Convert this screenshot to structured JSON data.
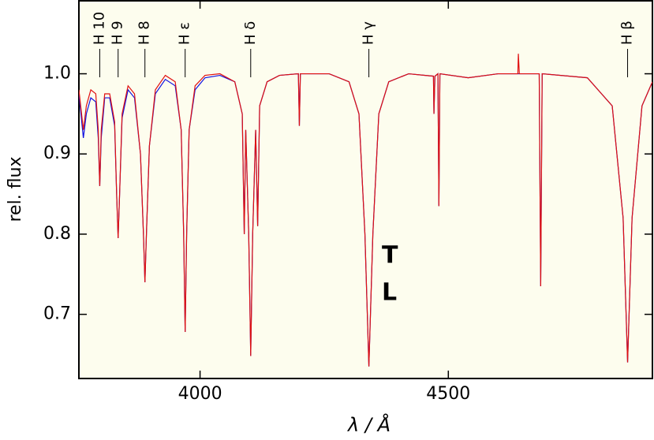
{
  "chart_data": {
    "type": "line",
    "xlabel": "λ / Å",
    "ylabel": "rel. flux",
    "xlim": [
      3756,
      4911
    ],
    "ylim": [
      0.62,
      1.091
    ],
    "xticks": [
      4000,
      4500
    ],
    "yticks": [
      {
        "value": 1,
        "label": "1.0"
      },
      0.9,
      0.8,
      0.7
    ],
    "line_labels": [
      {
        "x": 3798,
        "label": "H 10"
      },
      {
        "x": 3835,
        "label": "H 9"
      },
      {
        "x": 3889,
        "label": "H 8"
      },
      {
        "x": 3970,
        "label": "H ε"
      },
      {
        "x": 4102,
        "label": "H δ"
      },
      {
        "x": 4340,
        "label": "H γ"
      },
      {
        "x": 4861,
        "label": "H β"
      }
    ],
    "x": [
      3756,
      3765,
      3771,
      3780,
      3790,
      3795,
      3798,
      3801,
      3808,
      3818,
      3828,
      3832,
      3835,
      3838,
      3843,
      3855,
      3868,
      3880,
      3886,
      3889,
      3892,
      3898,
      3910,
      3930,
      3950,
      3962,
      3967,
      3970,
      3973,
      3978,
      3990,
      4010,
      4040,
      4070,
      4085,
      4089,
      4092,
      4098,
      4102,
      4106,
      4112,
      4116,
      4120,
      4135,
      4160,
      4198,
      4200,
      4202,
      4260,
      4300,
      4320,
      4332,
      4340,
      4348,
      4360,
      4380,
      4420,
      4470,
      4471,
      4473,
      4479,
      4481,
      4483,
      4540,
      4600,
      4640,
      4641,
      4643,
      4683,
      4686,
      4689,
      4780,
      4830,
      4852,
      4861,
      4870,
      4890,
      4911
    ],
    "series": [
      {
        "name": "L",
        "color": "#1010e0",
        "values": [
          0.975,
          0.92,
          0.95,
          0.97,
          0.965,
          0.92,
          0.86,
          0.92,
          0.97,
          0.97,
          0.935,
          0.85,
          0.795,
          0.85,
          0.945,
          0.98,
          0.97,
          0.9,
          0.8,
          0.74,
          0.8,
          0.91,
          0.975,
          0.993,
          0.985,
          0.93,
          0.8,
          0.678,
          0.8,
          0.93,
          0.98,
          0.995,
          0.998,
          0.99,
          0.95,
          0.8,
          0.93,
          0.8,
          0.648,
          0.8,
          0.93,
          0.81,
          0.96,
          0.99,
          0.998,
          1.0,
          0.935,
          1.0,
          1.0,
          0.99,
          0.95,
          0.8,
          0.635,
          0.8,
          0.95,
          0.99,
          1.0,
          0.997,
          0.95,
          0.997,
          1.0,
          0.835,
          1.0,
          0.995,
          1.0,
          1.0,
          1.0,
          1.0,
          1.0,
          0.735,
          1.0,
          0.995,
          0.96,
          0.82,
          0.64,
          0.82,
          0.96,
          0.99
        ]
      },
      {
        "name": "T",
        "color": "#e01010",
        "values": [
          0.98,
          0.93,
          0.96,
          0.98,
          0.975,
          0.93,
          0.86,
          0.93,
          0.975,
          0.975,
          0.94,
          0.85,
          0.795,
          0.85,
          0.95,
          0.985,
          0.975,
          0.9,
          0.8,
          0.74,
          0.8,
          0.91,
          0.98,
          0.998,
          0.99,
          0.93,
          0.8,
          0.678,
          0.8,
          0.93,
          0.985,
          0.998,
          1.0,
          0.99,
          0.95,
          0.8,
          0.93,
          0.8,
          0.648,
          0.8,
          0.93,
          0.81,
          0.96,
          0.99,
          0.998,
          1.0,
          0.935,
          1.0,
          1.0,
          0.99,
          0.95,
          0.8,
          0.635,
          0.8,
          0.95,
          0.99,
          1.0,
          0.997,
          0.95,
          0.997,
          1.0,
          0.835,
          1.0,
          0.995,
          1.0,
          1.0,
          1.025,
          1.0,
          1.0,
          0.735,
          1.0,
          0.995,
          0.96,
          0.82,
          0.64,
          0.82,
          0.96,
          0.99
        ]
      }
    ]
  }
}
